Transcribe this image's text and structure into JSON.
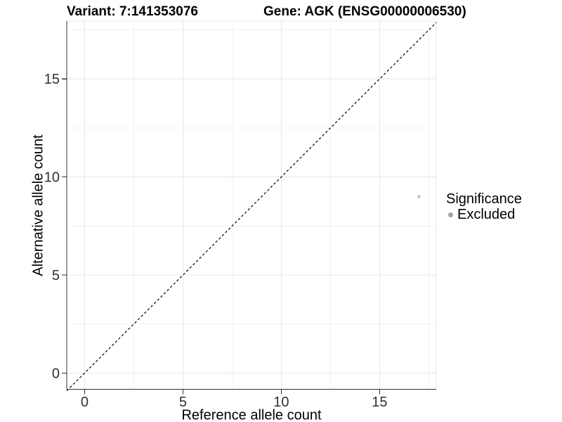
{
  "titles": {
    "variant": "Variant: 7:141353076",
    "gene": "Gene: AGK (ENSG00000006530)"
  },
  "legend": {
    "title": "Significance",
    "items": [
      {
        "label": "Excluded",
        "color": "#a3a3a3",
        "key_icon": "point-icon"
      }
    ]
  },
  "colors": {
    "background": "#ffffff",
    "axis_line": "#333333",
    "tick_label": "#303030",
    "grid_major": "#e7e7e7",
    "grid_minor": "#f2f2f2",
    "panel_border": "#e7e7e7",
    "reference_line": "#000000",
    "point": "#c6c6c6",
    "legend_dot": "#a3a3a3"
  },
  "chart_data": {
    "type": "scatter",
    "title_left": "Variant: 7:141353076",
    "title_right": "Gene: AGK (ENSG00000006530)",
    "xlabel": "Reference allele count",
    "ylabel": "Alternative allele count",
    "xlim": [
      -0.91,
      17.88
    ],
    "ylim": [
      -0.83,
      17.95
    ],
    "x_ticks": [
      0,
      5,
      10,
      15
    ],
    "y_ticks": [
      0,
      5,
      10,
      15
    ],
    "x_minor_ticks": [
      2.5,
      7.5,
      12.5,
      17.5
    ],
    "y_minor_ticks": [
      2.5,
      7.5,
      12.5,
      17.5
    ],
    "grid": "major+minor",
    "legend_position": "right",
    "legend_title": "Significance",
    "series": [
      {
        "name": "Excluded",
        "color": "#c6c6c6",
        "point_radius": 2.3,
        "points": [
          {
            "x": 17,
            "y": 9
          }
        ]
      }
    ],
    "reference_line": {
      "type": "identity",
      "slope": 1,
      "intercept": 0,
      "style": "dashed",
      "color": "#000000"
    }
  }
}
